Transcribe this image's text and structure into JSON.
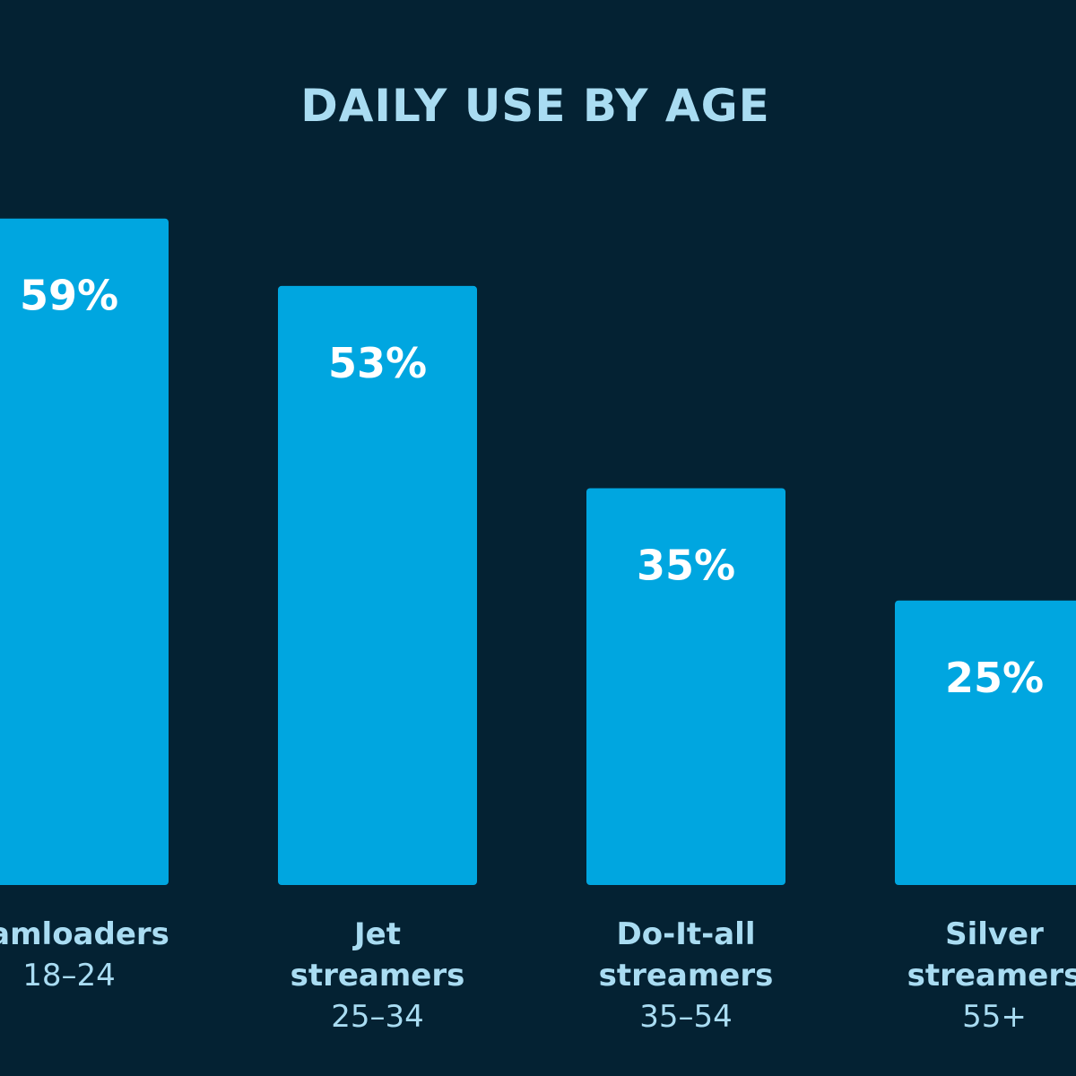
{
  "chart_data": {
    "type": "bar",
    "title": "DAILY USE BY AGE",
    "categories": [
      {
        "name_lines": [
          "eamloaders"
        ],
        "age": "18–24"
      },
      {
        "name_lines": [
          "Jet",
          "streamers"
        ],
        "age": "25–34"
      },
      {
        "name_lines": [
          "Do-It-all",
          "streamers"
        ],
        "age": "35–54"
      },
      {
        "name_lines": [
          "Silver",
          "streamers"
        ],
        "age": "55+"
      }
    ],
    "values": [
      59,
      53,
      35,
      25
    ],
    "value_labels": [
      "59%",
      "53%",
      "35%",
      "25%"
    ],
    "ylim": [
      0,
      100
    ],
    "grid": false,
    "colors": {
      "background": "#042233",
      "bar": "#00a6e0",
      "title": "#a9dcf2",
      "value_label": "#ffffff",
      "category_name": "#a9dcf2",
      "category_age": "#a9dcf2"
    }
  }
}
